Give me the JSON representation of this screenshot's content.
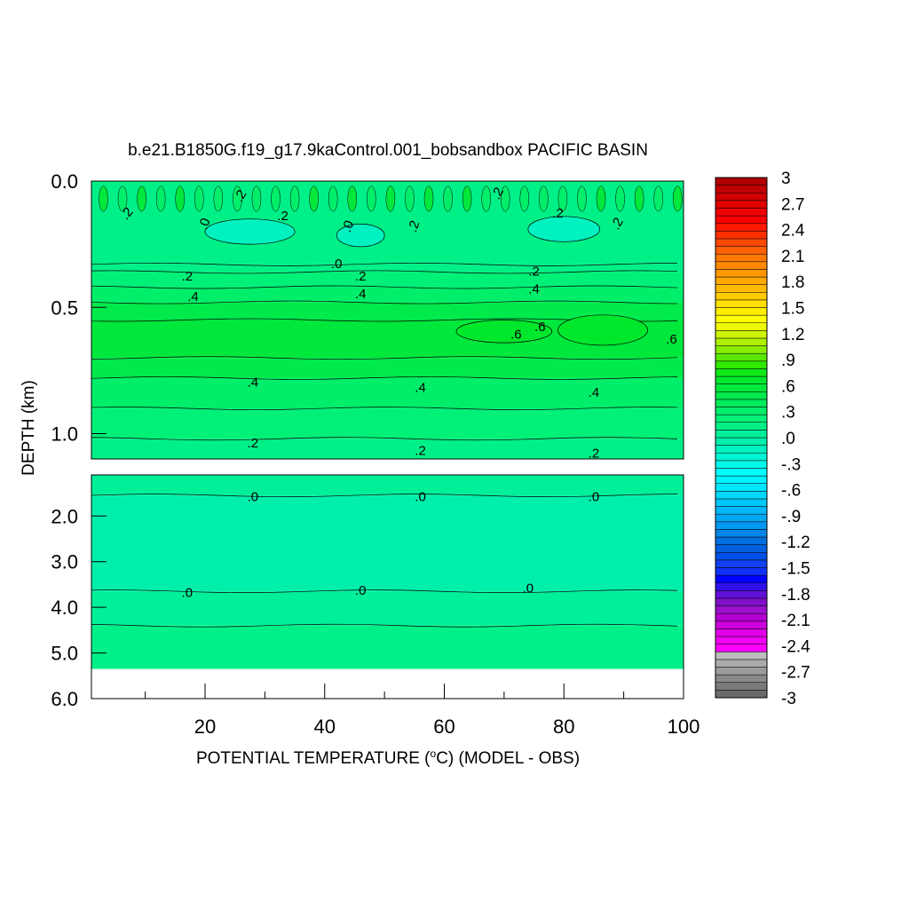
{
  "chart_data": {
    "type": "heatmap",
    "title": "b.e21.B1850G.f19_g17.9kaControl.001_bobsandbox PACIFIC BASIN",
    "xlabel": "POTENTIAL TEMPERATURE (°C) (MODEL - OBS)",
    "xlabel_parts": {
      "before": "POTENTIAL TEMPERATURE (",
      "sup": "o",
      "after": "C) (MODEL - OBS)"
    },
    "ylabel": "DEPTH (km)",
    "xlim": [
      1,
      100
    ],
    "x_ticks": [
      20,
      40,
      60,
      80,
      100
    ],
    "x_tick_labels": [
      "20",
      "40",
      "60",
      "80",
      "100"
    ],
    "panels": [
      {
        "name": "upper",
        "ylim": [
          0.0,
          1.1
        ],
        "y_ticks": [
          0.0,
          0.5,
          1.0
        ],
        "y_tick_labels": [
          "0.0",
          "0.5",
          "1.0"
        ],
        "bands": [
          {
            "top": 0.0,
            "bottom": 0.33,
            "value": 0.1
          },
          {
            "top": 0.33,
            "bottom": 0.36,
            "value": 0.15
          },
          {
            "top": 0.36,
            "bottom": 0.42,
            "value": 0.25
          },
          {
            "top": 0.42,
            "bottom": 0.48,
            "value": 0.35
          },
          {
            "top": 0.48,
            "bottom": 0.55,
            "value": 0.45
          },
          {
            "top": 0.55,
            "bottom": 0.7,
            "value": 0.55
          },
          {
            "top": 0.7,
            "bottom": 0.78,
            "value": 0.45
          },
          {
            "top": 0.78,
            "bottom": 0.9,
            "value": 0.35
          },
          {
            "top": 0.9,
            "bottom": 1.02,
            "value": 0.25
          },
          {
            "top": 1.02,
            "bottom": 1.1,
            "value": 0.15
          }
        ],
        "patches": [
          {
            "x0": 62,
            "x1": 78,
            "top": 0.55,
            "bottom": 0.64,
            "value": 0.65
          },
          {
            "x0": 79,
            "x1": 94,
            "top": 0.53,
            "bottom": 0.65,
            "value": 0.65
          },
          {
            "x0": 20,
            "x1": 35,
            "top": 0.15,
            "bottom": 0.25,
            "value": -0.1
          },
          {
            "x0": 42,
            "x1": 50,
            "top": 0.17,
            "bottom": 0.26,
            "value": -0.1
          },
          {
            "x0": 74,
            "x1": 86,
            "top": 0.14,
            "bottom": 0.24,
            "value": -0.1
          }
        ],
        "contour_labels": [
          {
            "x": 7,
            "y": 0.13,
            "text": ".2",
            "angle": -50
          },
          {
            "x": 20,
            "y": 0.17,
            "text": ".0",
            "angle": -70
          },
          {
            "x": 26,
            "y": 0.06,
            "text": ".2",
            "angle": -60
          },
          {
            "x": 33,
            "y": 0.14,
            "text": ".2",
            "angle": 0
          },
          {
            "x": 44,
            "y": 0.18,
            "text": ".0",
            "angle": -70
          },
          {
            "x": 55,
            "y": 0.18,
            "text": ".2",
            "angle": -70
          },
          {
            "x": 69,
            "y": 0.05,
            "text": ".2",
            "angle": -60
          },
          {
            "x": 79,
            "y": 0.13,
            "text": ".2",
            "angle": 0
          },
          {
            "x": 89,
            "y": 0.17,
            "text": ".2",
            "angle": -60
          },
          {
            "x": 42,
            "y": 0.33,
            "text": ".0",
            "angle": 0
          },
          {
            "x": 17,
            "y": 0.38,
            "text": ".2",
            "angle": 0
          },
          {
            "x": 46,
            "y": 0.38,
            "text": ".2",
            "angle": 0
          },
          {
            "x": 75,
            "y": 0.36,
            "text": ".2",
            "angle": 0
          },
          {
            "x": 18,
            "y": 0.46,
            "text": ".4",
            "angle": 0
          },
          {
            "x": 46,
            "y": 0.45,
            "text": ".4",
            "angle": 0
          },
          {
            "x": 75,
            "y": 0.43,
            "text": ".4",
            "angle": 0
          },
          {
            "x": 72,
            "y": 0.61,
            "text": ".6",
            "angle": 0
          },
          {
            "x": 76,
            "y": 0.58,
            "text": ".6",
            "angle": 0
          },
          {
            "x": 98,
            "y": 0.63,
            "text": ".6",
            "angle": 0
          },
          {
            "x": 28,
            "y": 0.8,
            "text": ".4",
            "angle": 0
          },
          {
            "x": 56,
            "y": 0.82,
            "text": ".4",
            "angle": 0
          },
          {
            "x": 85,
            "y": 0.84,
            "text": ".4",
            "angle": 0
          },
          {
            "x": 28,
            "y": 1.04,
            "text": ".2",
            "angle": 0
          },
          {
            "x": 56,
            "y": 1.07,
            "text": ".2",
            "angle": 0
          },
          {
            "x": 85,
            "y": 1.08,
            "text": ".2",
            "angle": 0
          }
        ]
      },
      {
        "name": "lower",
        "ylim": [
          1.1,
          6.0
        ],
        "y_ticks": [
          2.0,
          3.0,
          4.0,
          5.0,
          6.0
        ],
        "y_tick_labels": [
          "2.0",
          "3.0",
          "4.0",
          "5.0",
          "6.0"
        ],
        "bands": [
          {
            "top": 1.1,
            "bottom": 1.55,
            "value": 0.05
          },
          {
            "top": 1.55,
            "bottom": 3.65,
            "value": -0.05
          },
          {
            "top": 3.65,
            "bottom": 4.4,
            "value": 0.05
          },
          {
            "top": 4.4,
            "bottom": 5.35,
            "value": 0.15
          }
        ],
        "missing_below": 5.35,
        "contour_labels": [
          {
            "x": 28,
            "y": 1.6,
            "text": ".0",
            "angle": 0
          },
          {
            "x": 56,
            "y": 1.6,
            "text": ".0",
            "angle": 0
          },
          {
            "x": 85,
            "y": 1.6,
            "text": ".0",
            "angle": 0
          },
          {
            "x": 17,
            "y": 3.7,
            "text": ".0",
            "angle": 0
          },
          {
            "x": 46,
            "y": 3.65,
            "text": ".0",
            "angle": 0
          },
          {
            "x": 74,
            "y": 3.6,
            "text": ".0",
            "angle": 0
          }
        ]
      }
    ],
    "colorbar": {
      "min": -3,
      "max": 3,
      "labels": [
        "3",
        "2.7",
        "2.4",
        "2.1",
        "1.8",
        "1.5",
        "1.2",
        ".9",
        ".6",
        ".3",
        ".0",
        "-.3",
        "-.6",
        "-.9",
        "-1.2",
        "-1.5",
        "-1.8",
        "-2.1",
        "-2.4",
        "-2.7",
        "-3"
      ],
      "colors": [
        "#6a6a6a",
        "#7a7a7a",
        "#8a8a8a",
        "#9b9b9b",
        "#ababab",
        "#bcbcbc",
        "#ff00ff",
        "#f000f2",
        "#e000e6",
        "#cc00dd",
        "#b400d2",
        "#9a10cc",
        "#8010c8",
        "#6010d8",
        "#3010e8",
        "#0000ff",
        "#1030f8",
        "#1040f0",
        "#0050e8",
        "#0060e0",
        "#0070e0",
        "#0085e8",
        "#0098f0",
        "#00a8f4",
        "#00b8f8",
        "#00c8fa",
        "#00d8fc",
        "#00e8ff",
        "#00f4ff",
        "#00ffff",
        "#00f8ea",
        "#00f4d6",
        "#00f2c0",
        "#00f0ac",
        "#00f09a",
        "#00f088",
        "#00f078",
        "#00ee6a",
        "#00ec5a",
        "#00ea4c",
        "#00e83c",
        "#00e82c",
        "#10e818",
        "#30e800",
        "#5ae800",
        "#88ec00",
        "#aef000",
        "#ccf400",
        "#eef800",
        "#ffff00",
        "#ffee00",
        "#ffe000",
        "#ffcc00",
        "#ffba00",
        "#ffa800",
        "#ff9800",
        "#ff8800",
        "#ff7800",
        "#ff6000",
        "#ff4800",
        "#ff3000",
        "#ff1800",
        "#ff0000",
        "#f00000",
        "#e00000",
        "#d00000",
        "#c00000",
        "#b00000"
      ]
    }
  }
}
